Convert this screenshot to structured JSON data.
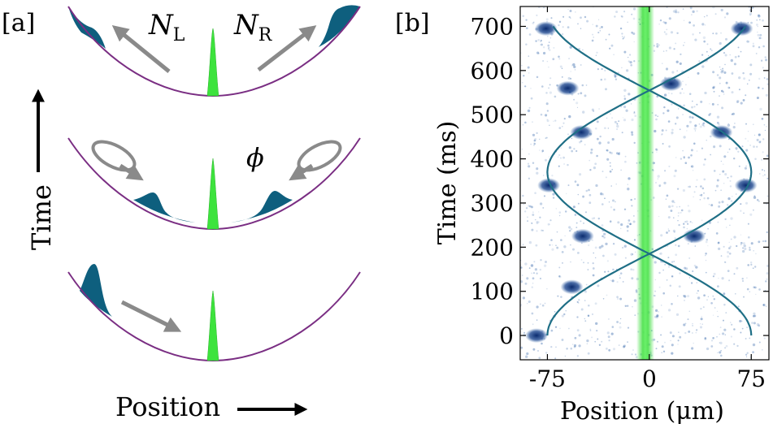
{
  "panel_a": {
    "label": "[a]",
    "n_left_symbol": "N",
    "n_left_sub": "L",
    "n_right_symbol": "N",
    "n_right_sub": "R",
    "phase_symbol": "ϕ",
    "time_axis_label": "Time",
    "position_axis_label": "Position",
    "colors": {
      "trap": "#7a2e83",
      "atoms": "#0e5f7e",
      "impurity": "#3de33d",
      "arrow": "#8a8a8a"
    }
  },
  "panel_b": {
    "label": "[b]",
    "colors": {
      "trajectory": "#1f6f86",
      "impurity_line": "#49e049",
      "density": "#2a5fa6"
    }
  },
  "chart_data": {
    "type": "scatter",
    "title": "",
    "xlabel": "Position (μm)",
    "ylabel": "Time (ms)",
    "xlim": [
      -95,
      88
    ],
    "ylim": [
      -55,
      745
    ],
    "xticks": [
      -75,
      0,
      75
    ],
    "xtick_labels": [
      "-75",
      "0",
      "75"
    ],
    "yticks": [
      0,
      100,
      200,
      300,
      400,
      500,
      600,
      700
    ],
    "ytick_labels": [
      "0",
      "100",
      "200",
      "300",
      "400",
      "500",
      "600",
      "700"
    ],
    "impurity_position_um": 0,
    "trajectory_model": {
      "amplitude_um": 75,
      "period_ms": 740,
      "phase_offset_ms": 0
    },
    "series": [
      {
        "name": "left-moving blob",
        "x": [
          -83,
          -57,
          -49,
          -74,
          -50,
          -60,
          -76
        ],
        "y": [
          0,
          110,
          225,
          340,
          460,
          560,
          695
        ]
      },
      {
        "name": "right-moving blob",
        "x": [
          33,
          71,
          53,
          16,
          68
        ],
        "y": [
          225,
          340,
          460,
          570,
          695
        ]
      }
    ]
  }
}
